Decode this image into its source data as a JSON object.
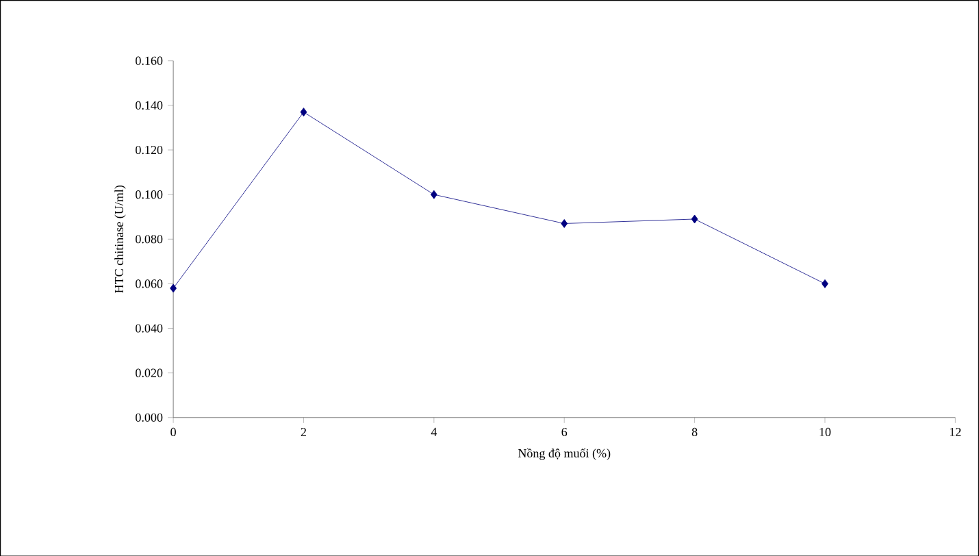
{
  "chart_data": {
    "type": "line",
    "xlabel": "Nồng độ muối (%)",
    "ylabel": "HTC chitinase (U/ml)",
    "x": [
      0,
      2,
      4,
      6,
      8,
      10
    ],
    "series": [
      {
        "color": "#000080",
        "values": [
          0.058,
          0.137,
          0.1,
          0.087,
          0.089,
          0.06
        ]
      }
    ],
    "xlim": [
      0,
      12
    ],
    "xticks": [
      0,
      2,
      4,
      6,
      8,
      10,
      12
    ],
    "ylim": [
      0,
      0.16
    ],
    "yticks": [
      {
        "value": 0,
        "label": "0.000"
      },
      {
        "value": 0.02,
        "label": "0.020"
      },
      {
        "value": 0.04,
        "label": "0.040"
      },
      {
        "value": 0.06,
        "label": "0.060"
      },
      {
        "value": 0.08,
        "label": "0.080"
      },
      {
        "value": 0.1,
        "label": "0.100"
      },
      {
        "value": 0.12,
        "label": "0.120"
      },
      {
        "value": 0.14,
        "label": "0.140"
      },
      {
        "value": 0.16,
        "label": "0.160"
      }
    ],
    "marker": "diamond",
    "line_style": "solid"
  }
}
